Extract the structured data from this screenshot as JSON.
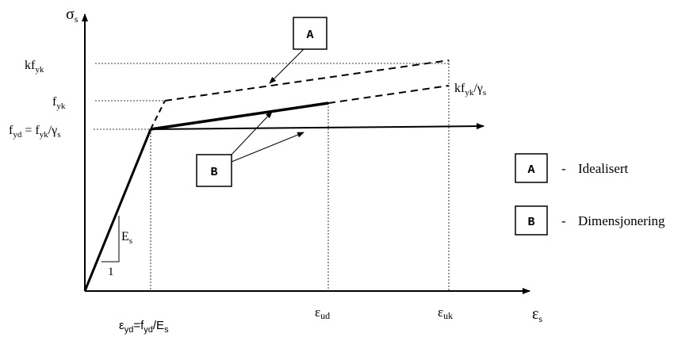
{
  "axes": {
    "y_label": "σ",
    "y_label_sub": "s",
    "x_label": "ε",
    "x_label_sub": "s"
  },
  "y_ticks": {
    "kfyk": {
      "main": "kf",
      "sub": "yk"
    },
    "fyk": {
      "main": "f",
      "sub": "yk"
    },
    "fyd": {
      "main": "f",
      "sub": "yd",
      "rest": " = f",
      "sub2": "yk",
      "rest2": "/γ",
      "sub3": "s"
    }
  },
  "x_ticks": {
    "eyd": {
      "main": "ε",
      "sub": "yd",
      "rest": "=f",
      "sub2": "yd",
      "rest2": "/E",
      "sub3": "s"
    },
    "eud": {
      "main": "ε",
      "sub": "ud"
    },
    "euk": {
      "main": "ε",
      "sub": "uk"
    }
  },
  "curve_labels": {
    "kfyk_gamma": {
      "main": "kf",
      "sub": "yk",
      "rest": "/γ",
      "sub2": "s"
    },
    "modulus": {
      "main": "E",
      "sub": "s"
    },
    "slope_run": "1"
  },
  "callouts": {
    "A": "A",
    "B": "B"
  },
  "legend": {
    "items": [
      {
        "key": "A",
        "dash": "-",
        "label": "Idealisert"
      },
      {
        "key": "B",
        "dash": "-",
        "label": "Dimensjonering"
      }
    ]
  }
}
